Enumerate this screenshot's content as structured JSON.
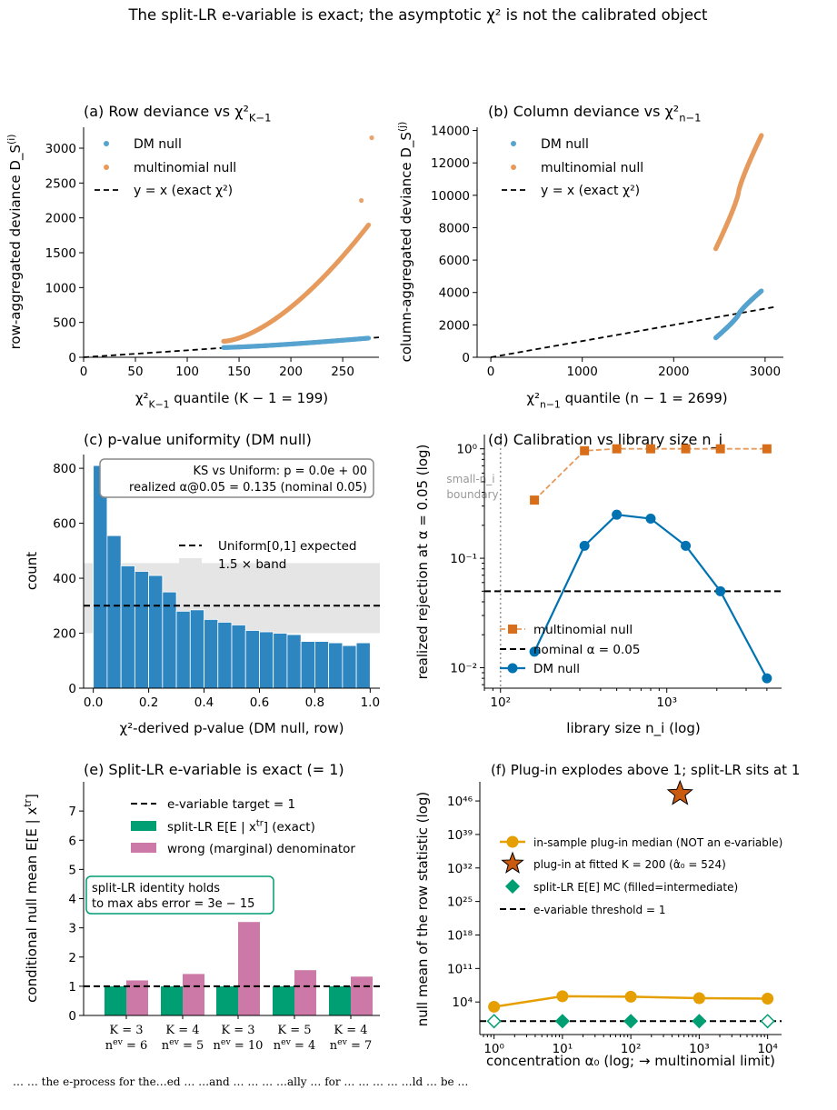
{
  "suptitle": "The split-LR e-variable is exact; the asymptotic χ² is not the calibrated object",
  "caption": "… … the e-process for the…ed … …and … … … …ally … for … … … … …ld … be …",
  "colors": {
    "dm": "#0072B2",
    "dm_light": "#56A3CF",
    "multi": "#D55E00",
    "multi_light": "#E69A5C",
    "hist": "#2E86C1",
    "green": "#009E73",
    "pink": "#CC79A7",
    "gold": "#E69F00",
    "band": "#E5E5E5",
    "gray": "#999999"
  },
  "chart_data": [
    {
      "id": "a",
      "type": "scatter",
      "title": "(a) Row deviance vs χ²_{K−1}",
      "xlabel": "χ²_{K−1} quantile  (K − 1 = 199)",
      "ylabel": "row-aggregated deviance D_S^{(i)}",
      "xlim": [
        0,
        285
      ],
      "ylim": [
        0,
        3300
      ],
      "xticks": [
        0,
        50,
        100,
        150,
        200,
        250
      ],
      "yticks": [
        0,
        500,
        1000,
        1500,
        2000,
        2500,
        3000
      ],
      "legend": [
        "DM null",
        "multinomial null",
        "y = x (exact χ²)"
      ],
      "legend_placement": "top-left",
      "series": [
        {
          "name": "DM null",
          "x_range": [
            135,
            275
          ],
          "y_start": 140,
          "y_end": 275,
          "n": 200
        },
        {
          "name": "multinomial null",
          "x_range": [
            135,
            275
          ],
          "y_start": 230,
          "y_end": 1900,
          "n": 200,
          "tail": [
            [
              268,
              2250
            ],
            [
              278,
              3150
            ]
          ]
        }
      ],
      "reference": {
        "name": "y = x (exact χ²)",
        "x": [
          0,
          285
        ],
        "y": [
          0,
          285
        ]
      }
    },
    {
      "id": "b",
      "type": "scatter",
      "title": "(b) Column deviance vs χ²_{n−1}",
      "xlabel": "χ²_{n−1} quantile  (n − 1 = 2699)",
      "ylabel": "column-aggregated deviance D_S^{(j)}",
      "xlim": [
        -150,
        3200
      ],
      "ylim": [
        0,
        14200
      ],
      "xticks": [
        0,
        1000,
        2000,
        3000
      ],
      "yticks": [
        0,
        2000,
        4000,
        6000,
        8000,
        10000,
        12000,
        14000
      ],
      "legend": [
        "DM null",
        "multinomial null",
        "y = x (exact χ²)"
      ],
      "legend_placement": "top-left",
      "series": [
        {
          "name": "DM null",
          "x_range": [
            2460,
            2960
          ],
          "y_start": 1200,
          "y_end": 4100,
          "n": 200
        },
        {
          "name": "multinomial null",
          "x_range": [
            2460,
            2960
          ],
          "y_start": 6700,
          "y_end": 13700,
          "n": 200
        }
      ],
      "reference": {
        "name": "y = x (exact χ²)",
        "x": [
          0,
          3100
        ],
        "y": [
          0,
          3100
        ]
      }
    },
    {
      "id": "c",
      "type": "bar",
      "title": "(c) p-value uniformity (DM null)",
      "xlabel": "χ²-derived p-value (DM null, row)",
      "ylabel": "count",
      "xlim": [
        -0.035,
        1.035
      ],
      "ylim": [
        0,
        850
      ],
      "xticks": [
        0.0,
        0.2,
        0.4,
        0.6,
        0.8,
        1.0
      ],
      "yticks": [
        0,
        200,
        400,
        600,
        800
      ],
      "bin_width": 0.05,
      "values": [
        810,
        555,
        445,
        425,
        410,
        350,
        280,
        285,
        250,
        240,
        230,
        210,
        205,
        200,
        195,
        170,
        170,
        165,
        155,
        165
      ],
      "expected": 300,
      "band": [
        200,
        455
      ],
      "legend": [
        "Uniform[0,1] expected",
        "1.5 × band"
      ],
      "annotation": [
        "KS vs Uniform: p = 0.0e + 00",
        "realized α@0.05 = 0.135 (nominal 0.05)"
      ]
    },
    {
      "id": "d",
      "type": "line",
      "title": "(d) Calibration vs library size n_i",
      "xlabel": "library size n_i (log)",
      "ylabel": "realized rejection at α = 0.05 (log)",
      "xlim": [
        80,
        4900
      ],
      "ylim": [
        0.0065,
        1.35
      ],
      "xticks": [
        100,
        1000
      ],
      "xticklabels": [
        "10²",
        "10³"
      ],
      "yticks": [
        0.01,
        0.1,
        1
      ],
      "yticklabels": [
        "10⁻²",
        "10⁻¹",
        "10⁰"
      ],
      "boundary_x": 100,
      "boundary_label": [
        "small-n_i",
        "boundary"
      ],
      "nominal": 0.05,
      "legend": [
        "multinomial null",
        "nominal α = 0.05",
        "DM null"
      ],
      "series": [
        {
          "name": "multinomial null",
          "x": [
            160,
            320,
            500,
            800,
            1300,
            2100,
            4000
          ],
          "values": [
            0.34,
            0.96,
            1.0,
            1.0,
            1.0,
            1.0,
            1.0
          ]
        },
        {
          "name": "DM null",
          "x": [
            160,
            320,
            500,
            800,
            1300,
            2100,
            4000
          ],
          "values": [
            0.014,
            0.13,
            0.25,
            0.23,
            0.13,
            0.05,
            0.008
          ]
        }
      ]
    },
    {
      "id": "e",
      "type": "bar",
      "title": "(e) Split-LR e-variable is exact (= 1)",
      "ylabel": "conditional null mean E[E | x^{tr}]",
      "ylim": [
        0,
        8
      ],
      "yticks": [
        0,
        1,
        2,
        3,
        4,
        5,
        6,
        7
      ],
      "categories": [
        [
          "K = 3",
          "n^{ev} = 6"
        ],
        [
          "K = 4",
          "n^{ev} = 5"
        ],
        [
          "K = 3",
          "n^{ev} = 10"
        ],
        [
          "K = 5",
          "n^{ev} = 4"
        ],
        [
          "K = 4",
          "n^{ev} = 7"
        ]
      ],
      "series": [
        {
          "name": "split-LR E[E | x^{tr}] (exact)",
          "values": [
            1,
            1,
            1,
            1,
            1
          ]
        },
        {
          "name": "wrong (marginal) denominator",
          "values": [
            1.2,
            1.42,
            3.2,
            1.55,
            1.33
          ]
        }
      ],
      "target": 1,
      "legend": [
        "e-variable target = 1",
        "split-LR E[E | x^{tr}] (exact)",
        "wrong (marginal) denominator"
      ],
      "annotation": [
        "split-LR identity holds",
        "to max abs error = 3e − 15"
      ]
    },
    {
      "id": "f",
      "type": "line",
      "title": "(f) Plug-in explodes above 1; split-LR sits at 1",
      "xlabel": "concentration α₀  (log; → multinomial limit)",
      "ylabel": "null mean of the row statistic (log)",
      "xlim": [
        0.62,
        16000
      ],
      "ylim": [
        -2.8,
        50
      ],
      "xticks": [
        1,
        10,
        100,
        1000,
        10000
      ],
      "xticklabels": [
        "10⁰",
        "10¹",
        "10²",
        "10³",
        "10⁴"
      ],
      "yticks": [
        4,
        11,
        18,
        25,
        32,
        39,
        46
      ],
      "yticklabels": [
        "10⁴",
        "10¹¹",
        "10¹⁸",
        "10²⁵",
        "10³²",
        "10³⁹",
        "10⁴⁶"
      ],
      "series": [
        {
          "name": "in-sample plug-in median (NOT an e-variable)",
          "x": [
            1,
            10,
            100,
            1000,
            10000
          ],
          "log10_values": [
            3.0,
            5.2,
            5.1,
            4.8,
            4.7
          ]
        },
        {
          "name": "plug-in at fitted K = 200 (α̂₀ = 524)",
          "x": [
            524
          ],
          "log10_values": [
            47.5
          ]
        },
        {
          "name": "split-LR E[E] MC (filled=intermediate)",
          "x": [
            1,
            10,
            100,
            1000,
            10000
          ],
          "log10_values": [
            0,
            0,
            0,
            0,
            0
          ],
          "filled": [
            false,
            true,
            true,
            true,
            false
          ]
        }
      ],
      "threshold": 1,
      "legend": [
        "in-sample plug-in median (NOT an e-variable)",
        "plug-in at fitted K = 200 (α̂₀ = 524)",
        "split-LR E[E] MC (filled=intermediate)",
        "e-variable threshold = 1"
      ]
    }
  ]
}
